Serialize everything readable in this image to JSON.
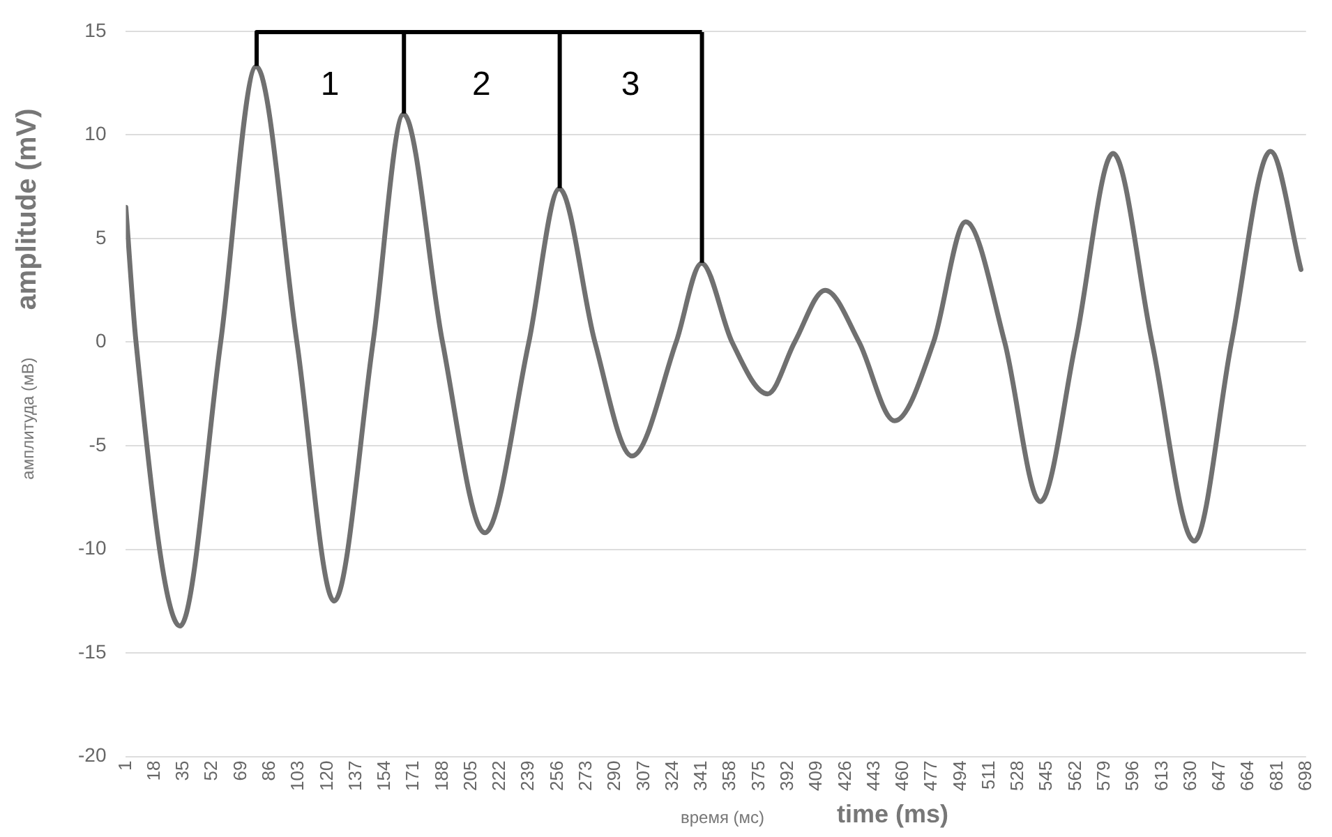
{
  "chart_data": {
    "type": "line",
    "xlabel": "time  (ms)",
    "ylabel": "amplitude  (mV)",
    "annotations": [
      "амплитуда (мВ)",
      "время (мс)",
      "1",
      "2",
      "3"
    ],
    "series": [
      {
        "color": "#707070",
        "x": [
          1,
          7,
          33,
          57,
          78,
          102,
          124,
          147,
          165,
          188,
          213,
          239,
          257,
          278,
          300,
          326,
          341,
          359,
          380,
          396,
          414,
          434,
          455,
          478,
          497,
          520,
          541,
          562,
          584,
          607,
          632,
          654,
          677,
          695
        ],
        "values": [
          6.5,
          0,
          -13.7,
          0,
          13.3,
          0,
          -12.5,
          0,
          11.0,
          0,
          -9.2,
          0,
          7.4,
          0,
          -5.5,
          0,
          3.8,
          0,
          -2.5,
          0,
          2.5,
          0,
          -3.8,
          0,
          5.8,
          0,
          -7.7,
          0,
          9.1,
          0,
          -9.6,
          0,
          9.2,
          3.5
        ]
      }
    ],
    "xlim": [
      1,
      698
    ],
    "xticks": [
      1,
      18,
      35,
      52,
      69,
      86,
      103,
      120,
      137,
      154,
      171,
      188,
      205,
      222,
      239,
      256,
      273,
      290,
      307,
      324,
      341,
      358,
      375,
      392,
      409,
      426,
      443,
      460,
      477,
      494,
      511,
      528,
      545,
      562,
      579,
      596,
      613,
      630,
      647,
      664,
      681,
      698
    ],
    "ylim": [
      -20,
      15
    ],
    "yticks": [
      -20,
      -15,
      -10,
      -5,
      0,
      5,
      10,
      15
    ],
    "grid": "y",
    "legend": false,
    "marker": "none",
    "line_style": "solid"
  }
}
